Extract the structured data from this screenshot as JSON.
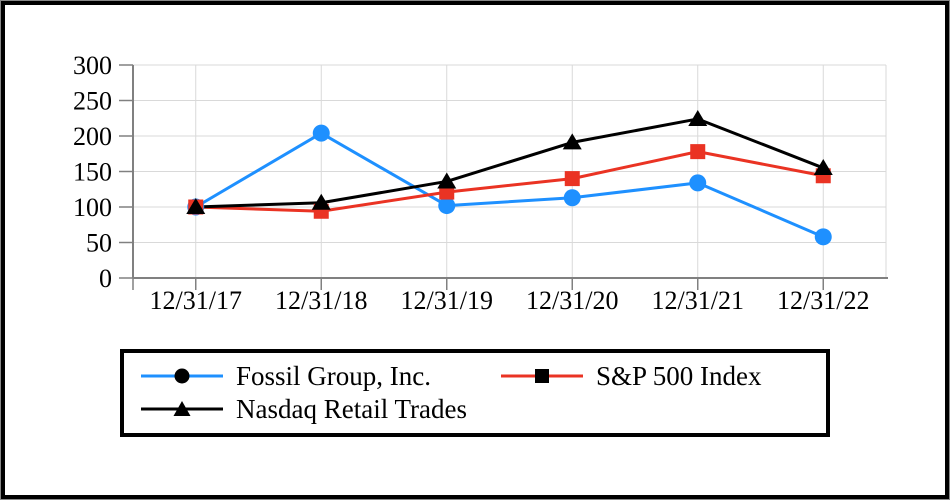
{
  "chart_data": {
    "type": "line",
    "title": "",
    "x": [
      "12/31/17",
      "12/31/18",
      "12/31/19",
      "12/31/20",
      "12/31/21",
      "12/31/22"
    ],
    "series": [
      {
        "name": "Fossil Group, Inc.",
        "marker": "circle",
        "color": "#1e90ff",
        "values": [
          100,
          204,
          102,
          113,
          134,
          58
        ]
      },
      {
        "name": "S&P 500 Index",
        "marker": "square",
        "color": "#ea3323",
        "values": [
          100,
          94,
          121,
          140,
          178,
          144
        ]
      },
      {
        "name": "Nasdaq Retail Trades",
        "marker": "triangle",
        "color": "#000000",
        "values": [
          100,
          106,
          136,
          191,
          224,
          155
        ]
      }
    ],
    "ylim": [
      0,
      300
    ],
    "yticks": [
      0,
      50,
      100,
      150,
      200,
      250,
      300
    ],
    "xlabel": "",
    "ylabel": "",
    "grid": true,
    "legend_position": "bottom",
    "legend_marker_color": "#000000",
    "axis_color": "#808080",
    "gridline_color": "#d9d9d9",
    "tick_label_color": "#000000"
  }
}
